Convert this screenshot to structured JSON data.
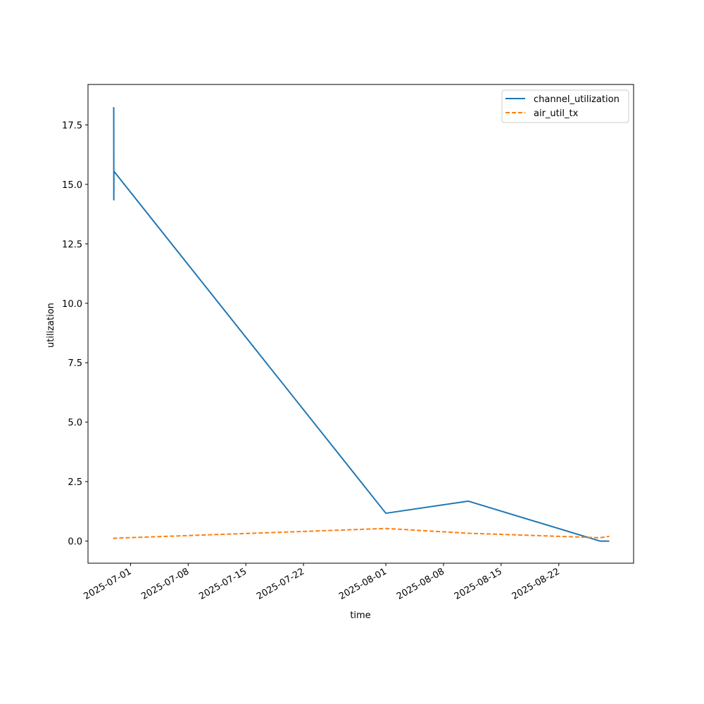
{
  "chart_data": {
    "type": "line",
    "title": "",
    "xlabel": "time",
    "ylabel": "utilization",
    "x_axis": {
      "kind": "date",
      "ticks": [
        "2025-07-01",
        "2025-07-08",
        "2025-07-15",
        "2025-07-22",
        "2025-08-01",
        "2025-08-08",
        "2025-08-15",
        "2025-08-22"
      ],
      "range": [
        "2025-06-25T20:00",
        "2025-08-31T02:00"
      ]
    },
    "y_axis": {
      "ticks": [
        "0.0",
        "2.5",
        "5.0",
        "7.5",
        "10.0",
        "12.5",
        "15.0",
        "17.5"
      ],
      "ylim": [
        -0.93,
        19.2
      ]
    },
    "grid": false,
    "legend_position": "top-right",
    "series": [
      {
        "name": "channel_utilization",
        "color": "#1f77b4",
        "style": "solid",
        "points": [
          {
            "x": "2025-06-28T23:00",
            "y": 18.25
          },
          {
            "x": "2025-06-28T23:15",
            "y": 14.35
          },
          {
            "x": "2025-06-28T23:30",
            "y": 15.55
          },
          {
            "x": "2025-08-01T00:00",
            "y": 1.17
          },
          {
            "x": "2025-08-11T00:00",
            "y": 1.68
          },
          {
            "x": "2025-08-27T00:00",
            "y": 0.0
          },
          {
            "x": "2025-08-28T03:00",
            "y": 0.0
          }
        ]
      },
      {
        "name": "air_util_tx",
        "color": "#ff7f0e",
        "style": "dashed",
        "points": [
          {
            "x": "2025-06-28T23:00",
            "y": 0.08
          },
          {
            "x": "2025-06-28T23:30",
            "y": 0.12
          },
          {
            "x": "2025-08-01T00:00",
            "y": 0.53
          },
          {
            "x": "2025-08-11T00:00",
            "y": 0.33
          },
          {
            "x": "2025-08-27T00:00",
            "y": 0.14
          },
          {
            "x": "2025-08-28T03:00",
            "y": 0.2
          }
        ]
      }
    ]
  }
}
